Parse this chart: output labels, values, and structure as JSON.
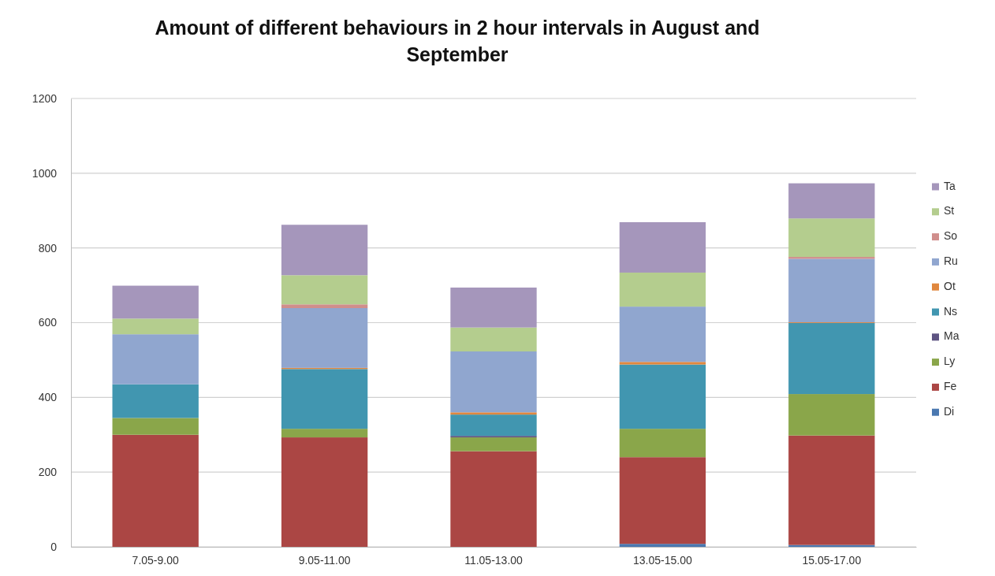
{
  "chart_data": {
    "type": "bar",
    "title": "Amount of different behaviours in 2 hour intervals in August and September",
    "categories": [
      "7.05-9.00",
      "9.05-11.00",
      "11.05-13.00",
      "13.05-15.00",
      "15.05-17.00"
    ],
    "stacked": true,
    "series": [
      {
        "name": "Di",
        "color": "#4a78b0",
        "values": [
          0,
          0,
          0,
          8,
          5
        ]
      },
      {
        "name": "Fe",
        "color": "#ab4644",
        "values": [
          300,
          293,
          256,
          232,
          293
        ]
      },
      {
        "name": "Ly",
        "color": "#8aa64a",
        "values": [
          45,
          23,
          37,
          76,
          111
        ]
      },
      {
        "name": "Ma",
        "color": "#5e5482",
        "values": [
          0,
          0,
          4,
          0,
          0
        ]
      },
      {
        "name": "Ns",
        "color": "#4196b0",
        "values": [
          90,
          160,
          57,
          172,
          190
        ]
      },
      {
        "name": "Ot",
        "color": "#e0873e",
        "values": [
          0,
          3,
          6,
          7,
          2
        ]
      },
      {
        "name": "Ru",
        "color": "#90a6cf",
        "values": [
          134,
          160,
          163,
          148,
          170
        ]
      },
      {
        "name": "So",
        "color": "#d08e8c",
        "values": [
          0,
          10,
          0,
          0,
          5
        ]
      },
      {
        "name": "St",
        "color": "#b4cd8e",
        "values": [
          42,
          78,
          64,
          91,
          103
        ]
      },
      {
        "name": "Ta",
        "color": "#a596bb",
        "values": [
          88,
          135,
          107,
          135,
          94
        ]
      }
    ],
    "ylim": [
      0,
      1200
    ],
    "yticks": [
      0,
      200,
      400,
      600,
      800,
      1000,
      1200
    ],
    "grid": "y",
    "legend": "right"
  }
}
